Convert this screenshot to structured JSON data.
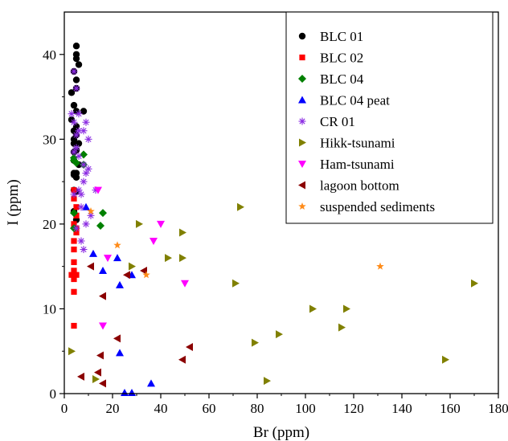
{
  "chart_data": {
    "type": "scatter",
    "title": "",
    "xlabel": "Br (ppm)",
    "ylabel": "I (ppm)",
    "xlim": [
      0,
      180
    ],
    "ylim": [
      0,
      45
    ],
    "xticks": [
      0,
      20,
      40,
      60,
      80,
      100,
      120,
      140,
      160,
      180
    ],
    "yticks": [
      0,
      10,
      20,
      30,
      40
    ],
    "grid": false,
    "legend_position": "top-right",
    "series": [
      {
        "name": "BLC 01",
        "marker": "circle",
        "color": "#000000",
        "points": [
          [
            5,
            41
          ],
          [
            5,
            40
          ],
          [
            5,
            39.5
          ],
          [
            6,
            38.8
          ],
          [
            4,
            38
          ],
          [
            5,
            37
          ],
          [
            5,
            36
          ],
          [
            3,
            35.5
          ],
          [
            4,
            34
          ],
          [
            5,
            33.3
          ],
          [
            8,
            33.3
          ],
          [
            3,
            32.3
          ],
          [
            5,
            31.5
          ],
          [
            4,
            31
          ],
          [
            5,
            30.5
          ],
          [
            4,
            30
          ],
          [
            4,
            29.5
          ],
          [
            6,
            29.5
          ],
          [
            5,
            28.7
          ],
          [
            4,
            28.5
          ],
          [
            4,
            27.5
          ],
          [
            6,
            27
          ],
          [
            4,
            26
          ],
          [
            5,
            26
          ],
          [
            4,
            25.8
          ],
          [
            5,
            25.5
          ],
          [
            4,
            24
          ],
          [
            5,
            23.8
          ],
          [
            4,
            21.5
          ],
          [
            5,
            20.5
          ]
        ]
      },
      {
        "name": "BLC 02",
        "marker": "square",
        "color": "#ff0000",
        "points": [
          [
            4,
            24
          ],
          [
            4,
            23
          ],
          [
            5,
            22
          ],
          [
            5,
            21
          ],
          [
            4,
            20
          ],
          [
            5,
            19.5
          ],
          [
            5,
            19
          ],
          [
            4,
            18
          ],
          [
            4,
            17
          ],
          [
            4,
            15.5
          ],
          [
            4,
            14.5
          ],
          [
            3,
            14
          ],
          [
            5,
            14
          ],
          [
            4,
            13.5
          ],
          [
            4,
            12
          ],
          [
            4,
            8
          ]
        ]
      },
      {
        "name": "BLC 04",
        "marker": "diamond",
        "color": "#008000",
        "points": [
          [
            8,
            28.2
          ],
          [
            4,
            27.8
          ],
          [
            4,
            27.5
          ],
          [
            5,
            27.2
          ],
          [
            8,
            27
          ],
          [
            4,
            21.3
          ],
          [
            16,
            21.3
          ],
          [
            4,
            19.5
          ],
          [
            15,
            19.8
          ]
        ]
      },
      {
        "name": "BLC 04 peat",
        "marker": "triangle-up",
        "color": "#0000ff",
        "points": [
          [
            9,
            22
          ],
          [
            12,
            16.5
          ],
          [
            22,
            16
          ],
          [
            16,
            14.5
          ],
          [
            28,
            14
          ],
          [
            23,
            12.8
          ],
          [
            23,
            4.8
          ],
          [
            36,
            1.2
          ],
          [
            25,
            0.1
          ],
          [
            28,
            0.1
          ]
        ]
      },
      {
        "name": "CR 01",
        "marker": "asterisk",
        "color": "#8a2be2",
        "points": [
          [
            4,
            38
          ],
          [
            5,
            36
          ],
          [
            3,
            33
          ],
          [
            6,
            33
          ],
          [
            4,
            32
          ],
          [
            6,
            31
          ],
          [
            9,
            32
          ],
          [
            8,
            31
          ],
          [
            5,
            30.5
          ],
          [
            10,
            30
          ],
          [
            5,
            29
          ],
          [
            4,
            28.5
          ],
          [
            6,
            28
          ],
          [
            8,
            27
          ],
          [
            10,
            26.5
          ],
          [
            9,
            26
          ],
          [
            8,
            25
          ],
          [
            6,
            24
          ],
          [
            13,
            24
          ],
          [
            4,
            23.5
          ],
          [
            7,
            23.5
          ],
          [
            7,
            22
          ],
          [
            11,
            21
          ],
          [
            9,
            20
          ],
          [
            5,
            19.5
          ],
          [
            7,
            18
          ],
          [
            8,
            17
          ]
        ]
      },
      {
        "name": "Hikk-tsunami",
        "marker": "triangle-right",
        "color": "#808000",
        "points": [
          [
            73,
            22
          ],
          [
            31,
            20
          ],
          [
            49,
            19
          ],
          [
            43,
            16
          ],
          [
            49,
            16
          ],
          [
            28,
            15
          ],
          [
            71,
            13
          ],
          [
            170,
            13
          ],
          [
            103,
            10
          ],
          [
            117,
            10
          ],
          [
            115,
            7.8
          ],
          [
            89,
            7
          ],
          [
            79,
            6
          ],
          [
            3,
            5
          ],
          [
            158,
            4
          ],
          [
            13,
            1.7
          ],
          [
            84,
            1.5
          ]
        ]
      },
      {
        "name": "Ham-tsunami",
        "marker": "triangle-down",
        "color": "#ff00ff",
        "points": [
          [
            14,
            24
          ],
          [
            40,
            20
          ],
          [
            37,
            18
          ],
          [
            18,
            16
          ],
          [
            50,
            13
          ],
          [
            16,
            8
          ]
        ]
      },
      {
        "name": "lagoon bottom",
        "marker": "triangle-left",
        "color": "#8b0000",
        "points": [
          [
            11,
            15
          ],
          [
            33,
            14.5
          ],
          [
            26,
            14
          ],
          [
            16,
            11.5
          ],
          [
            22,
            6.5
          ],
          [
            52,
            5.5
          ],
          [
            15,
            4.5
          ],
          [
            49,
            4
          ],
          [
            14,
            2.5
          ],
          [
            7,
            2
          ],
          [
            16,
            1.2
          ]
        ]
      },
      {
        "name": "suspended sediments",
        "marker": "star",
        "color": "#ff8c1a",
        "points": [
          [
            11,
            21.5
          ],
          [
            22,
            17.5
          ],
          [
            131,
            15
          ],
          [
            34,
            14
          ]
        ]
      }
    ]
  }
}
